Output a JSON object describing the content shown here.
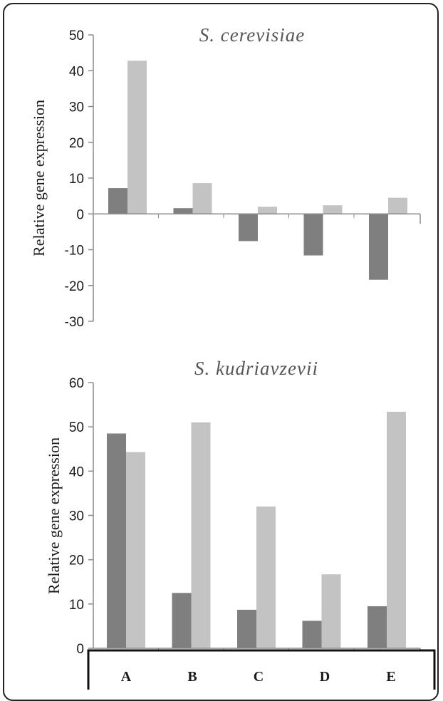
{
  "colors": {
    "series_dark": "#7f7f7f",
    "series_light": "#c3c3c3",
    "axis": "#8c8c8c"
  },
  "chart_data": [
    {
      "type": "bar",
      "title": "S. cerevisiae",
      "ylabel": "Relative gene expression",
      "xlabel": "",
      "categories": [
        "A",
        "B",
        "C",
        "D",
        "E"
      ],
      "ylim": [
        -30,
        50
      ],
      "yticks": [
        50,
        40,
        30,
        20,
        10,
        0,
        -10,
        -20,
        -30
      ],
      "grid": false,
      "series": [
        {
          "values": [
            7.2,
            1.6,
            -7.6,
            -11.6,
            -18.4
          ]
        },
        {
          "values": [
            42.8,
            8.6,
            2.0,
            2.4,
            4.5
          ]
        }
      ]
    },
    {
      "type": "bar",
      "title": "S. kudriavzevii",
      "ylabel": "Relative gene expression",
      "xlabel": "",
      "categories": [
        "A",
        "B",
        "C",
        "D",
        "E"
      ],
      "ylim": [
        0,
        60
      ],
      "yticks": [
        60,
        50,
        40,
        30,
        20,
        10,
        0
      ],
      "grid": false,
      "series": [
        {
          "values": [
            48.5,
            12.5,
            8.7,
            6.2,
            9.5
          ]
        },
        {
          "values": [
            44.3,
            51.0,
            32.0,
            16.7,
            53.4
          ]
        }
      ]
    }
  ]
}
